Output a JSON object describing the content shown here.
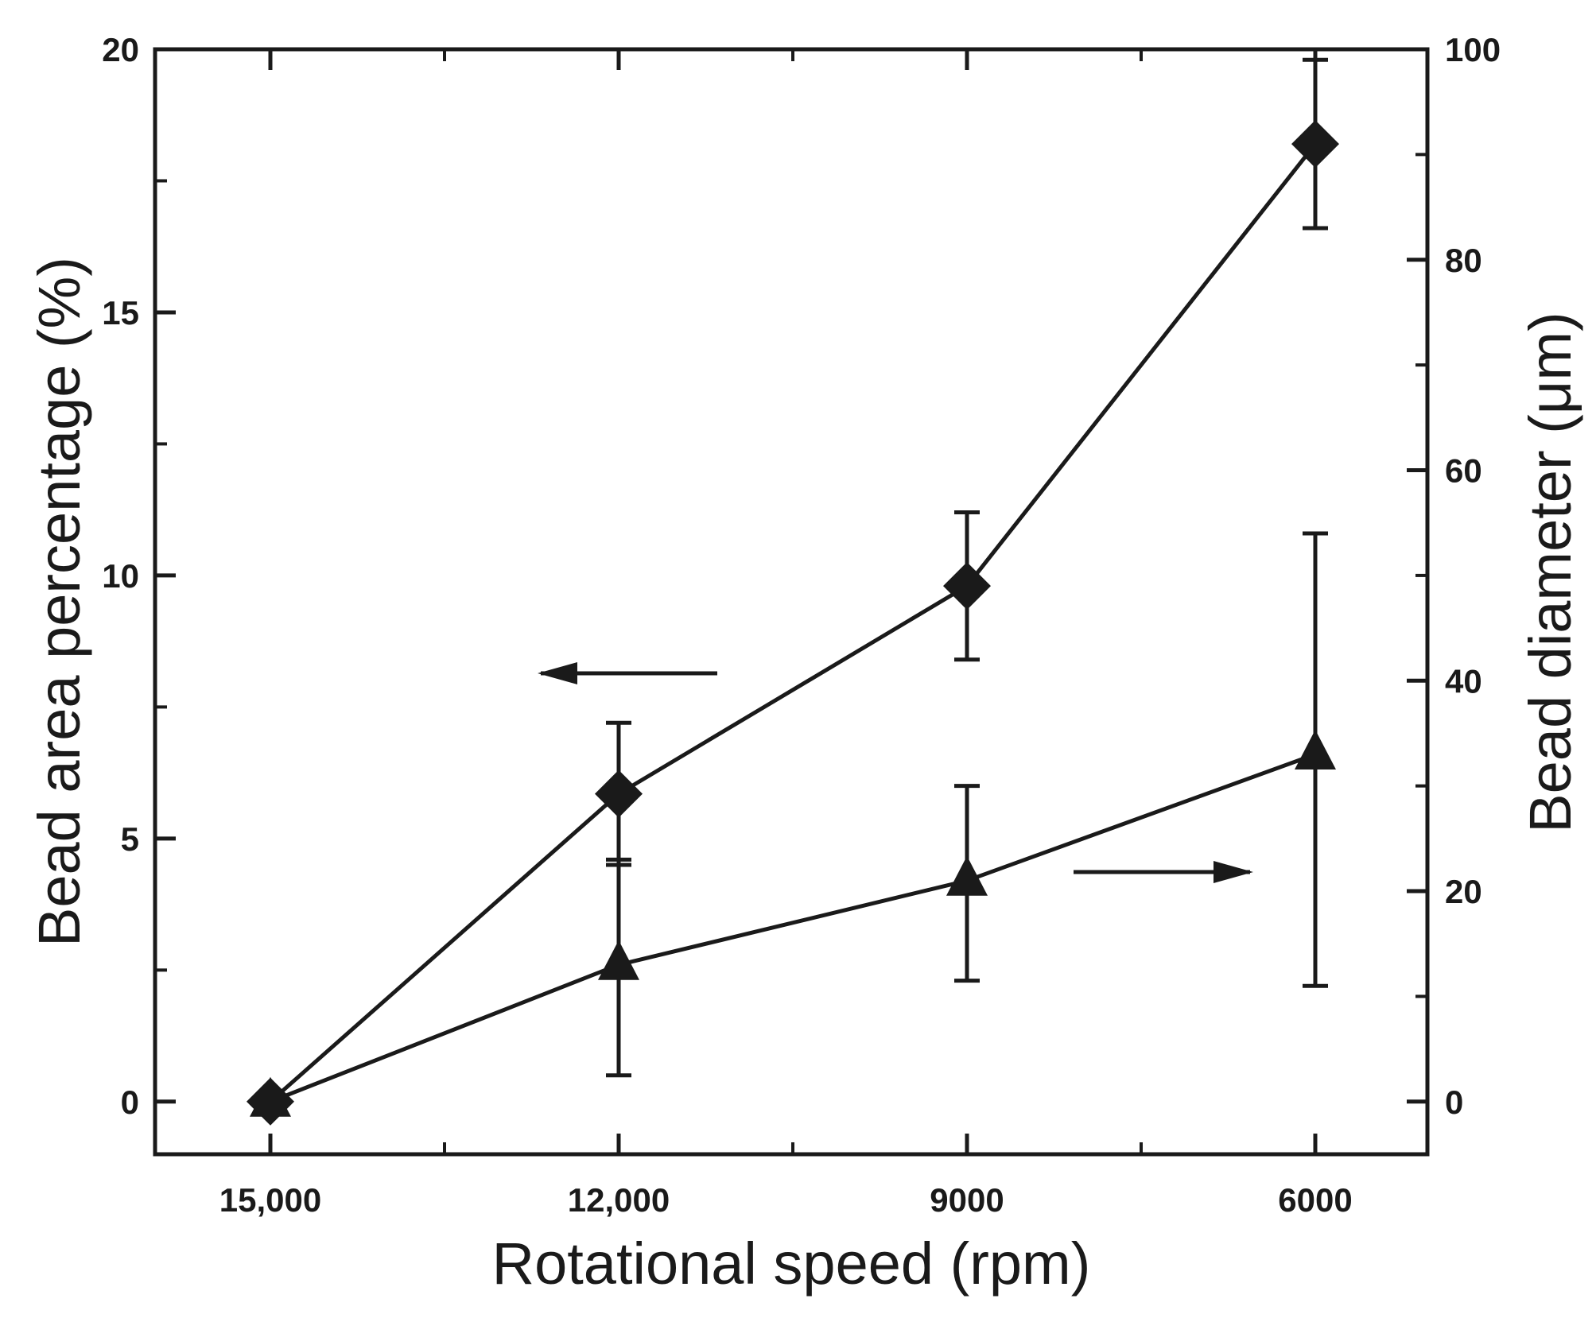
{
  "chart_data": {
    "type": "line",
    "title": "",
    "xlabel": "Rotational speed (rpm)",
    "ylabel_left": "Bead area percentage  (%)",
    "ylabel_right": "Bead diameter (μm)",
    "categories": [
      "15,000",
      "12,000",
      "9000",
      "6000"
    ],
    "y_left": {
      "lim": [
        -1,
        20
      ],
      "ticks": [
        0,
        5,
        10,
        15,
        20
      ],
      "tick_labels": [
        "0",
        "5",
        "10",
        "15",
        "20"
      ]
    },
    "y_right": {
      "lim": [
        -5,
        100
      ],
      "ticks": [
        0,
        20,
        40,
        60,
        80,
        100
      ],
      "tick_labels": [
        "0",
        "20",
        "40",
        "60",
        "80",
        "100"
      ]
    },
    "series": [
      {
        "name": "Bead area percentage",
        "axis": "left",
        "marker": "diamond",
        "values": [
          0,
          5.85,
          9.8,
          18.2
        ],
        "err_low": [
          0,
          1.35,
          1.4,
          1.6
        ],
        "err_high": [
          0,
          1.35,
          1.4,
          1.6
        ]
      },
      {
        "name": "Bead diameter",
        "axis": "right",
        "marker": "triangle",
        "values": [
          0,
          13,
          21,
          33
        ],
        "err_low": [
          0,
          10.5,
          9.5,
          22
        ],
        "err_high": [
          0,
          10,
          9,
          21
        ]
      }
    ],
    "annotations": [
      {
        "type": "arrow",
        "direction": "left",
        "points_to_axis": "left"
      },
      {
        "type": "arrow",
        "direction": "right",
        "points_to_axis": "right"
      }
    ],
    "colors": {
      "ink": "#1a1a1a",
      "background": "#ffffff"
    }
  }
}
